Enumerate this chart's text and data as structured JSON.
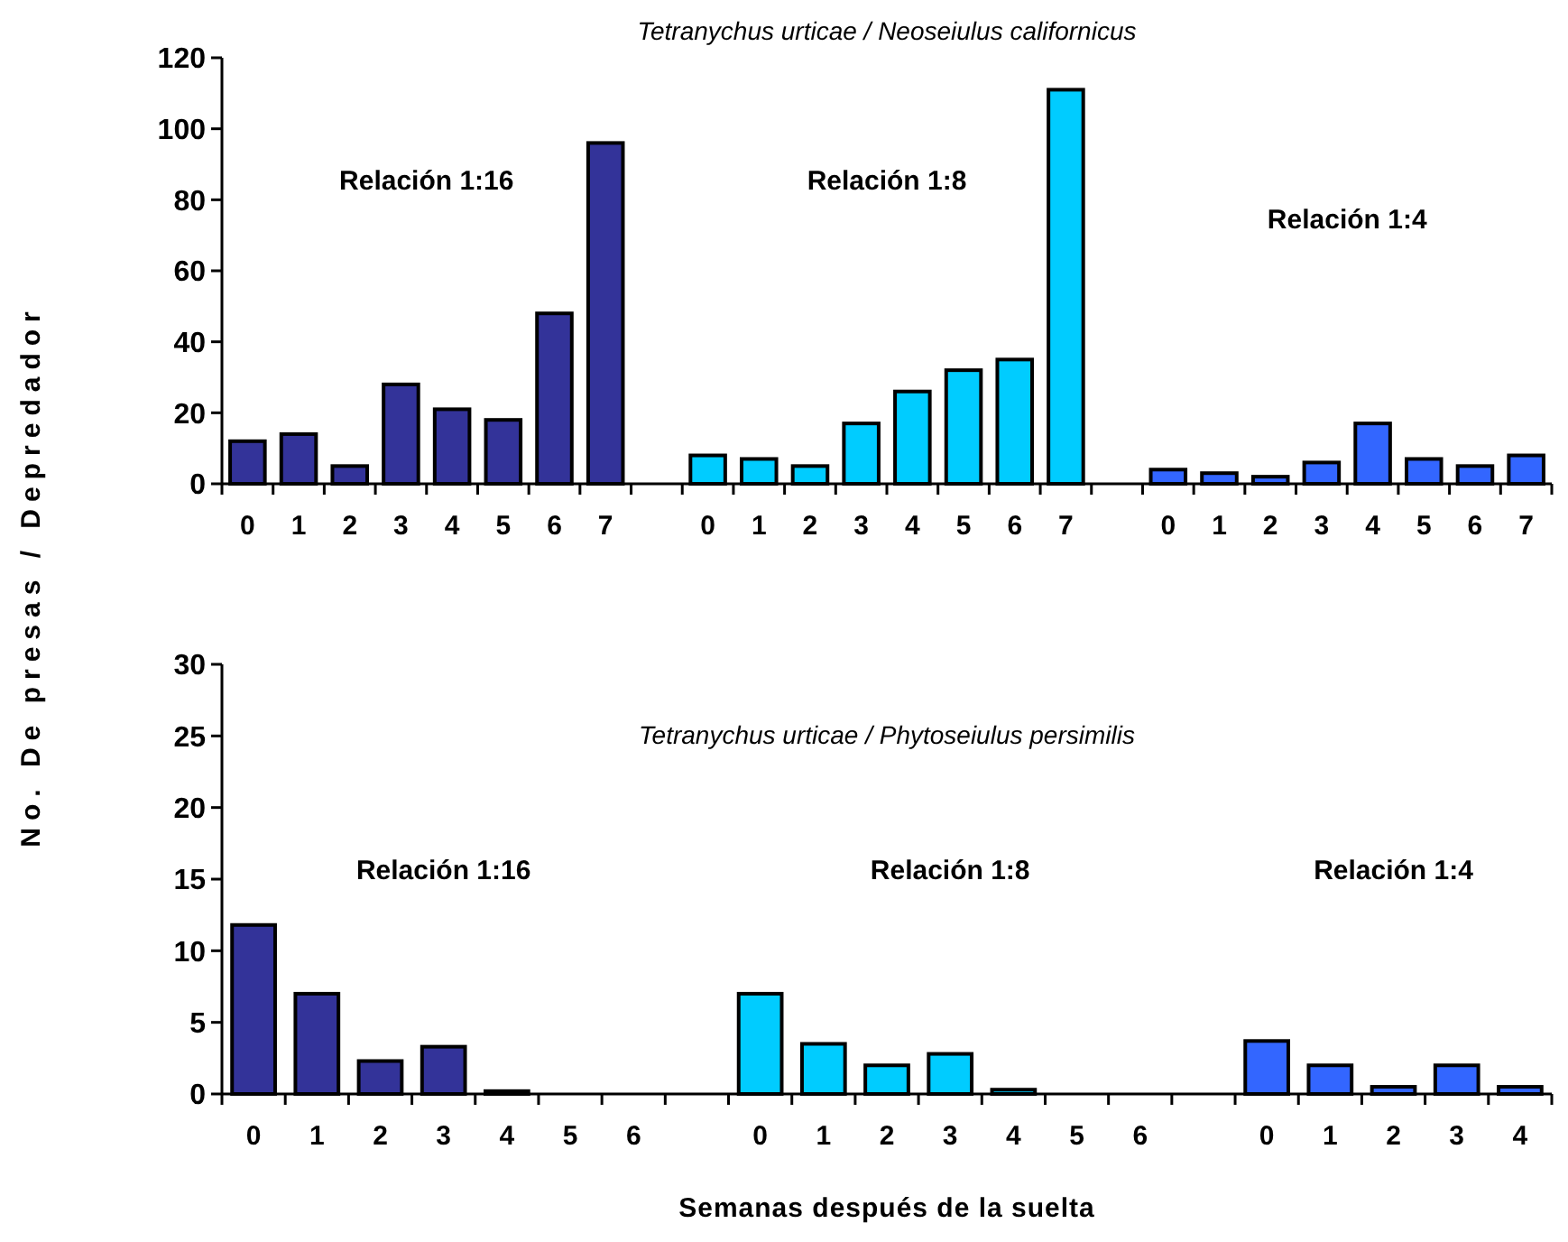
{
  "chart_data": [
    {
      "type": "bar",
      "title": "Tetranychus urticae / Neoseiulus californicus",
      "ylabel": "No. De presas / Depredador",
      "categories": [
        "0",
        "1",
        "2",
        "3",
        "4",
        "5",
        "6",
        "7",
        null,
        "0",
        "1",
        "2",
        "3",
        "4",
        "5",
        "6",
        "7",
        null,
        "0",
        "1",
        "2",
        "3",
        "4",
        "5",
        "6",
        "7"
      ],
      "series": [
        {
          "color": "#333399",
          "values": [
            12,
            14,
            5,
            28,
            21,
            18,
            48,
            96,
            null,
            null,
            null,
            null,
            null,
            null,
            null,
            null,
            null,
            null,
            null,
            null,
            null,
            null,
            null,
            null,
            null,
            null
          ]
        },
        {
          "color": "#00ccff",
          "values": [
            null,
            null,
            null,
            null,
            null,
            null,
            null,
            null,
            null,
            8,
            7,
            5,
            17,
            26,
            32,
            35,
            111,
            null,
            null,
            null,
            null,
            null,
            null,
            null,
            null,
            null
          ]
        },
        {
          "color": "#3366ff",
          "values": [
            null,
            null,
            null,
            null,
            null,
            null,
            null,
            null,
            null,
            null,
            null,
            null,
            null,
            null,
            null,
            null,
            null,
            null,
            4,
            3,
            2,
            6,
            17,
            7,
            5,
            8
          ]
        }
      ],
      "ylim": [
        0,
        120
      ],
      "yticks": [
        0,
        20,
        40,
        60,
        80,
        100,
        120
      ],
      "annotations": [
        "Relación 1:16",
        "Relación 1:8",
        "Relación 1:4"
      ]
    },
    {
      "type": "bar",
      "title": "Tetranychus urticae / Phytoseiulus persimilis",
      "xlabel": "Semanas después de la suelta",
      "categories": [
        "0",
        "1",
        "2",
        "3",
        "4",
        "5",
        "6",
        null,
        "0",
        "1",
        "2",
        "3",
        "4",
        "5",
        "6",
        null,
        "0",
        "1",
        "2",
        "3",
        "4"
      ],
      "series": [
        {
          "color": "#333399",
          "values": [
            11.8,
            7,
            2.3,
            3.3,
            0.2,
            0,
            0,
            null,
            null,
            null,
            null,
            null,
            null,
            null,
            null,
            null,
            null,
            null,
            null,
            null,
            null
          ]
        },
        {
          "color": "#00ccff",
          "values": [
            null,
            null,
            null,
            null,
            null,
            null,
            null,
            null,
            7,
            3.5,
            2,
            2.8,
            0.3,
            0,
            0,
            null,
            null,
            null,
            null,
            null,
            null
          ]
        },
        {
          "color": "#3366ff",
          "values": [
            null,
            null,
            null,
            null,
            null,
            null,
            null,
            null,
            null,
            null,
            null,
            null,
            null,
            null,
            null,
            null,
            3.7,
            2,
            0.5,
            2,
            0.5
          ]
        }
      ],
      "ylim": [
        0,
        30
      ],
      "yticks": [
        0,
        5,
        10,
        15,
        20,
        25,
        30
      ],
      "annotations": [
        "Relación 1:16",
        "Relación 1:8",
        "Relación 1:4"
      ]
    }
  ]
}
